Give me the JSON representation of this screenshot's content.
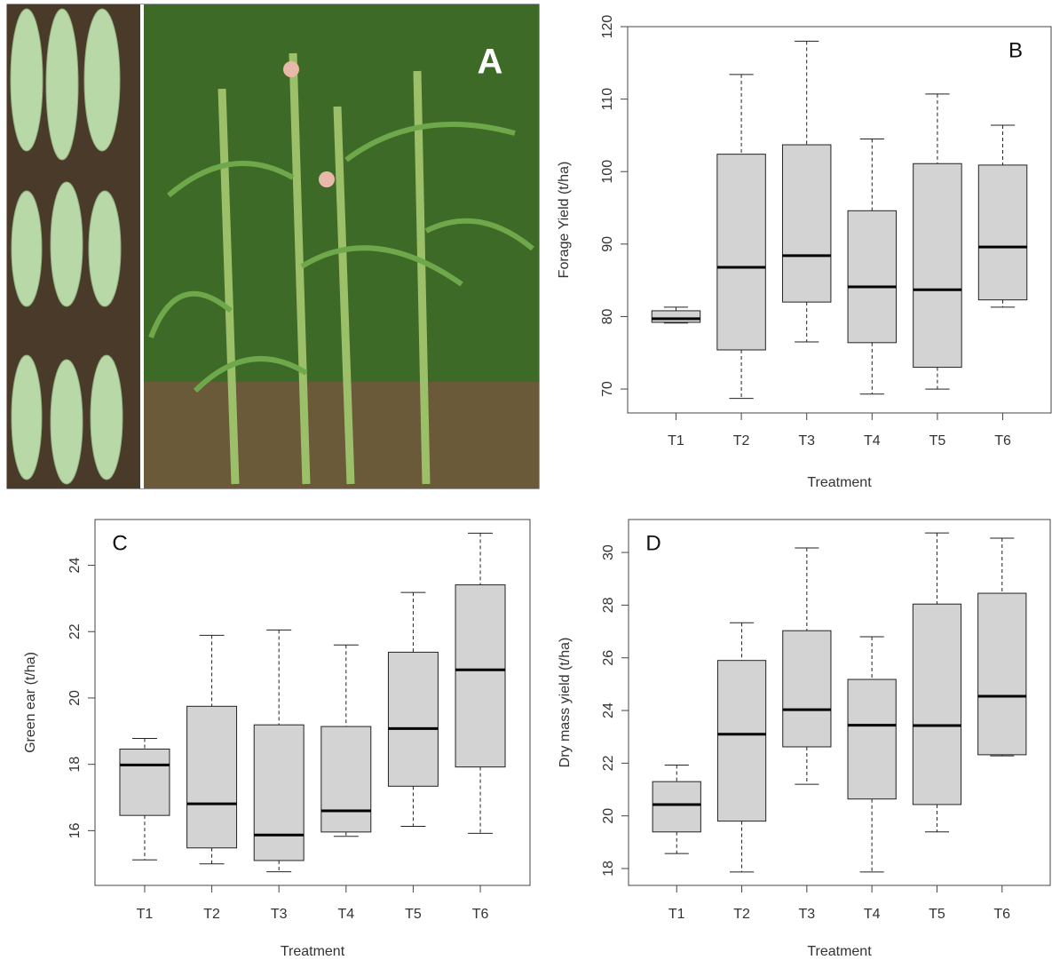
{
  "panel_a": {
    "label": "A"
  },
  "chart_data": [
    {
      "type": "box",
      "label": "B",
      "ylabel": "Forage Yield (t/ha)",
      "xlabel": "Treatment",
      "color": "#d3d3d3",
      "categories": [
        "T1",
        "T2",
        "T3",
        "T4",
        "T5",
        "T6"
      ],
      "boxes": [
        {
          "min": 79.1,
          "q1": 79.2,
          "median": 79.7,
          "q3": 80.8,
          "max": 81.3
        },
        {
          "min": 68.7,
          "q1": 75.4,
          "median": 86.8,
          "q3": 102.4,
          "max": 113.4
        },
        {
          "min": 76.5,
          "q1": 82.0,
          "median": 88.4,
          "q3": 103.7,
          "max": 118.0
        },
        {
          "min": 69.3,
          "q1": 76.4,
          "median": 84.1,
          "q3": 94.6,
          "max": 104.5
        },
        {
          "min": 70.0,
          "q1": 73.0,
          "median": 83.7,
          "q3": 101.1,
          "max": 110.7
        },
        {
          "min": 81.3,
          "q1": 82.3,
          "median": 89.6,
          "q3": 100.9,
          "max": 106.4
        }
      ],
      "ylim": [
        66.7,
        120.0
      ],
      "yticks": [
        70,
        80,
        90,
        100,
        110,
        120
      ]
    },
    {
      "type": "box",
      "label": "C",
      "ylabel": "Green ear (t/ha)",
      "xlabel": "Treatment",
      "color": "#d3d3d3",
      "categories": [
        "T1",
        "T2",
        "T3",
        "T4",
        "T5",
        "T6"
      ],
      "boxes": [
        {
          "min": 15.12,
          "q1": 16.46,
          "median": 17.98,
          "q3": 18.46,
          "max": 18.78
        },
        {
          "min": 15.0,
          "q1": 15.48,
          "median": 16.81,
          "q3": 19.75,
          "max": 21.89
        },
        {
          "min": 14.76,
          "q1": 15.1,
          "median": 15.87,
          "q3": 19.19,
          "max": 22.05
        },
        {
          "min": 15.83,
          "q1": 15.96,
          "median": 16.6,
          "q3": 19.14,
          "max": 21.6
        },
        {
          "min": 16.13,
          "q1": 17.34,
          "median": 19.08,
          "q3": 21.38,
          "max": 23.18
        },
        {
          "min": 15.92,
          "q1": 17.92,
          "median": 20.85,
          "q3": 23.41,
          "max": 24.97
        }
      ],
      "ylim": [
        14.35,
        25.38
      ],
      "yticks": [
        16,
        18,
        20,
        22,
        24
      ]
    },
    {
      "type": "box",
      "label": "D",
      "ylabel": "Dry mass yield (t/ha)",
      "xlabel": "Treatment",
      "color": "#d3d3d3",
      "categories": [
        "T1",
        "T2",
        "T3",
        "T4",
        "T5",
        "T6"
      ],
      "boxes": [
        {
          "min": 18.57,
          "q1": 19.39,
          "median": 20.43,
          "q3": 21.3,
          "max": 21.93
        },
        {
          "min": 17.87,
          "q1": 19.8,
          "median": 23.1,
          "q3": 25.9,
          "max": 27.33
        },
        {
          "min": 21.2,
          "q1": 22.62,
          "median": 24.03,
          "q3": 27.03,
          "max": 30.17
        },
        {
          "min": 17.87,
          "q1": 20.64,
          "median": 23.44,
          "q3": 25.18,
          "max": 26.8
        },
        {
          "min": 19.39,
          "q1": 20.43,
          "median": 23.43,
          "q3": 28.04,
          "max": 30.74
        },
        {
          "min": 22.28,
          "q1": 22.32,
          "median": 24.54,
          "q3": 28.45,
          "max": 30.54
        }
      ],
      "ylim": [
        17.36,
        31.25
      ],
      "yticks": [
        18,
        20,
        22,
        24,
        26,
        28,
        30
      ]
    }
  ]
}
